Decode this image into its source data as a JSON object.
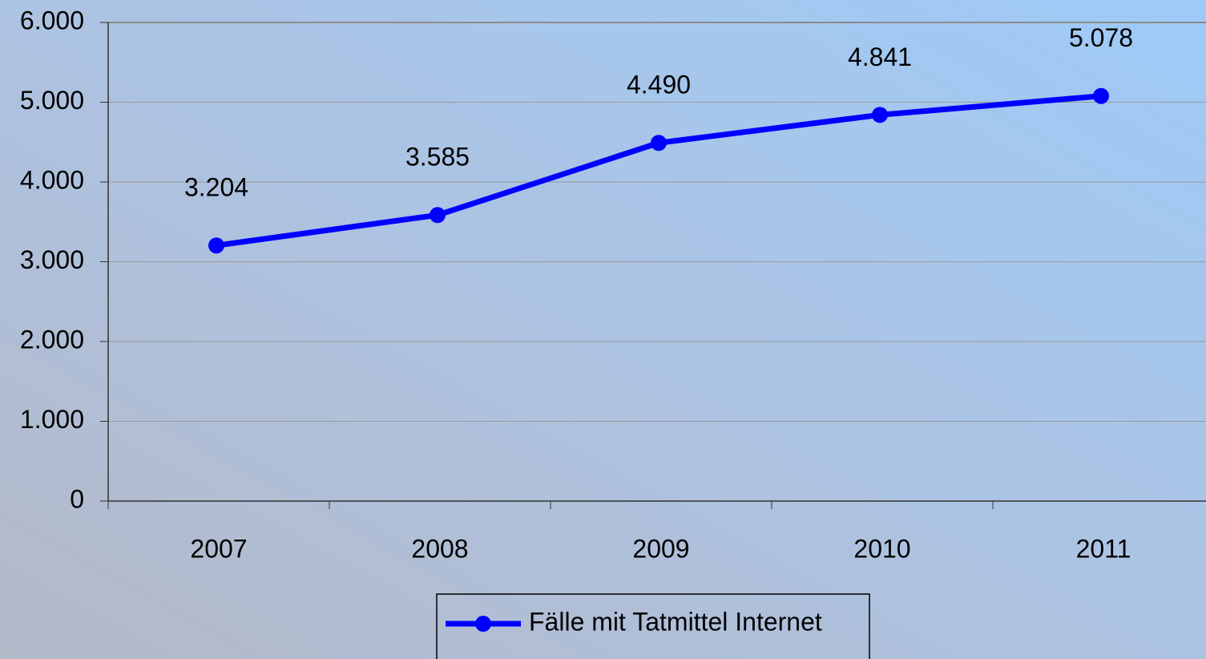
{
  "chart_data": {
    "type": "line",
    "categories": [
      "2007",
      "2008",
      "2009",
      "2010",
      "2011"
    ],
    "series": [
      {
        "name": "Fälle mit Tatmittel Internet",
        "color": "#0000ff",
        "values": [
          3204,
          3585,
          4490,
          4841,
          5078
        ],
        "value_labels": [
          "3.204",
          "3.585",
          "4.490",
          "4.841",
          "5.078"
        ]
      }
    ],
    "ylim": [
      0,
      6000
    ],
    "yticks": [
      0,
      {
        "value": 1000,
        "label": "1.000"
      },
      {
        "value": 2000,
        "label": "2.000"
      },
      {
        "value": 3000,
        "label": "3.000"
      },
      {
        "value": 4000,
        "label": "4.000"
      },
      {
        "value": 5000,
        "label": "5.000"
      },
      {
        "value": 6000,
        "label": "6.000"
      }
    ],
    "grid": true,
    "legend": "bottom"
  }
}
